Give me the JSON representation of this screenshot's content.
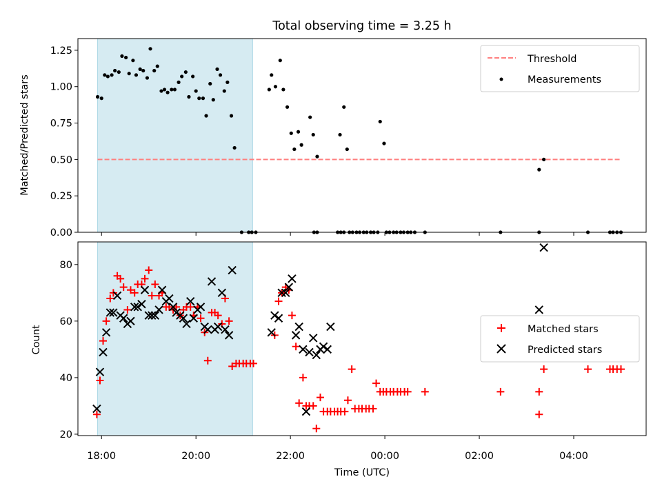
{
  "title": "Total observing time = 3.25 h",
  "x_ticks": [
    "18:00",
    "20:00",
    "22:00",
    "00:00",
    "02:00",
    "04:00"
  ],
  "colors": {
    "threshold": "#ff7f7f",
    "shade": "#add8e6",
    "matched": "#ff0000",
    "predicted": "#000000"
  },
  "chart_data": [
    {
      "type": "scatter",
      "xlabel": "",
      "ylabel": "Matched/Predicted stars",
      "ylim": [
        0.0,
        1.33
      ],
      "y_ticks": [
        "0.00",
        "0.25",
        "0.50",
        "0.75",
        "1.00",
        "1.25"
      ],
      "observing_window": [
        "17:55",
        "21:12"
      ],
      "legend": {
        "position": "upper right",
        "entries": [
          "Threshold",
          "Measurements"
        ]
      },
      "threshold": {
        "name": "Threshold",
        "value": 0.5,
        "x_range": [
          "17:55",
          "05:00"
        ]
      },
      "series": [
        {
          "name": "Measurements",
          "points": [
            [
              "17:55",
              0.93
            ],
            [
              "18:00",
              0.92
            ],
            [
              "18:04",
              1.08
            ],
            [
              "18:08",
              1.07
            ],
            [
              "18:13",
              1.08
            ],
            [
              "18:17",
              1.11
            ],
            [
              "18:22",
              1.1
            ],
            [
              "18:26",
              1.21
            ],
            [
              "18:31",
              1.2
            ],
            [
              "18:35",
              1.09
            ],
            [
              "18:40",
              1.18
            ],
            [
              "18:44",
              1.08
            ],
            [
              "18:49",
              1.12
            ],
            [
              "18:53",
              1.11
            ],
            [
              "18:58",
              1.06
            ],
            [
              "19:02",
              1.26
            ],
            [
              "19:07",
              1.11
            ],
            [
              "19:11",
              1.14
            ],
            [
              "19:16",
              0.97
            ],
            [
              "19:20",
              0.98
            ],
            [
              "19:24",
              0.96
            ],
            [
              "19:29",
              0.98
            ],
            [
              "19:33",
              0.98
            ],
            [
              "19:38",
              1.03
            ],
            [
              "19:42",
              1.07
            ],
            [
              "19:47",
              1.1
            ],
            [
              "19:51",
              0.93
            ],
            [
              "19:56",
              1.07
            ],
            [
              "20:00",
              0.97
            ],
            [
              "20:04",
              0.92
            ],
            [
              "20:09",
              0.92
            ],
            [
              "20:13",
              0.8
            ],
            [
              "20:18",
              1.02
            ],
            [
              "20:22",
              0.91
            ],
            [
              "20:27",
              1.12
            ],
            [
              "20:31",
              1.08
            ],
            [
              "20:36",
              0.97
            ],
            [
              "20:40",
              1.03
            ],
            [
              "20:45",
              0.8
            ],
            [
              "20:49",
              0.58
            ],
            [
              "20:58",
              0
            ],
            [
              "21:07",
              0
            ],
            [
              "21:11",
              0
            ],
            [
              "21:16",
              0
            ],
            [
              "21:33",
              0.98
            ],
            [
              "21:36",
              1.08
            ],
            [
              "21:41",
              1.0
            ],
            [
              "21:47",
              1.18
            ],
            [
              "21:51",
              0.98
            ],
            [
              "21:56",
              0.86
            ],
            [
              "22:01",
              0.68
            ],
            [
              "22:05",
              0.57
            ],
            [
              "22:10",
              0.69
            ],
            [
              "22:14",
              0.6
            ],
            [
              "22:25",
              0.79
            ],
            [
              "22:29",
              0.67
            ],
            [
              "22:34",
              0.52
            ],
            [
              "23:03",
              0.67
            ],
            [
              "23:08",
              0.86
            ],
            [
              "23:12",
              0.57
            ],
            [
              "23:54",
              0.76
            ],
            [
              "23:59",
              0.61
            ],
            [
              "22:30",
              0
            ],
            [
              "22:34",
              0
            ],
            [
              "23:00",
              0
            ],
            [
              "23:04",
              0
            ],
            [
              "23:08",
              0
            ],
            [
              "23:15",
              0
            ],
            [
              "23:19",
              0
            ],
            [
              "23:24",
              0
            ],
            [
              "23:28",
              0
            ],
            [
              "23:33",
              0
            ],
            [
              "23:37",
              0
            ],
            [
              "23:42",
              0
            ],
            [
              "23:46",
              0
            ],
            [
              "23:51",
              0
            ],
            [
              "00:02",
              0
            ],
            [
              "00:06",
              0
            ],
            [
              "00:11",
              0
            ],
            [
              "00:15",
              0
            ],
            [
              "00:20",
              0
            ],
            [
              "00:24",
              0
            ],
            [
              "00:29",
              0
            ],
            [
              "00:33",
              0
            ],
            [
              "00:38",
              0
            ],
            [
              "00:51",
              0
            ],
            [
              "02:27",
              0
            ],
            [
              "03:16",
              0
            ],
            [
              "04:18",
              0
            ],
            [
              "04:46",
              0
            ],
            [
              "04:50",
              0
            ],
            [
              "04:55",
              0
            ],
            [
              "05:00",
              0
            ],
            [
              "03:16",
              0.43
            ],
            [
              "03:22",
              0.5
            ]
          ]
        }
      ]
    },
    {
      "type": "scatter",
      "xlabel": "Time (UTC)",
      "ylabel": "Count",
      "ylim": [
        19.5,
        88
      ],
      "y_ticks": [
        "20",
        "40",
        "60",
        "80"
      ],
      "observing_window": [
        "17:55",
        "21:12"
      ],
      "legend": {
        "position": "center right",
        "entries": [
          "Matched stars",
          "Predicted stars"
        ]
      },
      "series": [
        {
          "name": "Matched stars",
          "marker": "+",
          "points": [
            [
              "17:54",
              27
            ],
            [
              "17:58",
              39
            ],
            [
              "18:02",
              53
            ],
            [
              "18:06",
              60
            ],
            [
              "18:11",
              68
            ],
            [
              "18:15",
              70
            ],
            [
              "18:20",
              76
            ],
            [
              "18:24",
              75
            ],
            [
              "18:28",
              72
            ],
            [
              "18:33",
              64
            ],
            [
              "18:37",
              71
            ],
            [
              "18:42",
              70
            ],
            [
              "18:46",
              73
            ],
            [
              "18:51",
              73
            ],
            [
              "18:55",
              75
            ],
            [
              "19:00",
              78
            ],
            [
              "19:04",
              69
            ],
            [
              "19:08",
              73
            ],
            [
              "19:13",
              69
            ],
            [
              "19:17",
              70
            ],
            [
              "19:22",
              65
            ],
            [
              "19:26",
              65
            ],
            [
              "19:31",
              64
            ],
            [
              "19:35",
              65
            ],
            [
              "19:40",
              62
            ],
            [
              "19:44",
              64
            ],
            [
              "19:48",
              65
            ],
            [
              "19:53",
              65
            ],
            [
              "19:57",
              62
            ],
            [
              "20:02",
              65
            ],
            [
              "20:06",
              61
            ],
            [
              "20:11",
              56
            ],
            [
              "20:15",
              46
            ],
            [
              "20:20",
              63
            ],
            [
              "20:24",
              63
            ],
            [
              "20:28",
              62
            ],
            [
              "20:33",
              59
            ],
            [
              "20:37",
              68
            ],
            [
              "20:42",
              60
            ],
            [
              "20:46",
              44
            ],
            [
              "20:51",
              45
            ],
            [
              "20:55",
              45
            ],
            [
              "21:00",
              45
            ],
            [
              "21:04",
              45
            ],
            [
              "21:09",
              45
            ],
            [
              "21:13",
              45
            ],
            [
              "21:40",
              55
            ],
            [
              "21:45",
              67
            ],
            [
              "21:49",
              70
            ],
            [
              "21:54",
              72
            ],
            [
              "21:58",
              71
            ],
            [
              "22:02",
              62
            ],
            [
              "22:07",
              51
            ],
            [
              "22:11",
              31
            ],
            [
              "22:16",
              40
            ],
            [
              "22:20",
              30
            ],
            [
              "22:24",
              30
            ],
            [
              "22:29",
              30
            ],
            [
              "22:33",
              22
            ],
            [
              "22:38",
              33
            ],
            [
              "22:42",
              28
            ],
            [
              "22:47",
              28
            ],
            [
              "22:51",
              28
            ],
            [
              "22:56",
              28
            ],
            [
              "23:00",
              28
            ],
            [
              "23:04",
              28
            ],
            [
              "23:09",
              28
            ],
            [
              "23:13",
              32
            ],
            [
              "23:18",
              43
            ],
            [
              "23:22",
              29
            ],
            [
              "23:27",
              29
            ],
            [
              "23:31",
              29
            ],
            [
              "23:36",
              29
            ],
            [
              "23:40",
              29
            ],
            [
              "23:45",
              29
            ],
            [
              "23:49",
              38
            ],
            [
              "23:54",
              35
            ],
            [
              "23:58",
              35
            ],
            [
              "00:02",
              35
            ],
            [
              "00:07",
              35
            ],
            [
              "00:11",
              35
            ],
            [
              "00:16",
              35
            ],
            [
              "00:20",
              35
            ],
            [
              "00:25",
              35
            ],
            [
              "00:29",
              35
            ],
            [
              "00:51",
              35
            ],
            [
              "02:27",
              35
            ],
            [
              "03:16",
              35
            ],
            [
              "03:16",
              27
            ],
            [
              "03:22",
              43
            ],
            [
              "04:18",
              43
            ],
            [
              "04:46",
              43
            ],
            [
              "04:50",
              43
            ],
            [
              "04:55",
              43
            ],
            [
              "05:00",
              43
            ]
          ]
        },
        {
          "name": "Predicted stars",
          "marker": "x",
          "points": [
            [
              "17:54",
              29
            ],
            [
              "17:58",
              42
            ],
            [
              "18:02",
              49
            ],
            [
              "18:06",
              56
            ],
            [
              "18:11",
              63
            ],
            [
              "18:15",
              63
            ],
            [
              "18:20",
              69
            ],
            [
              "18:24",
              62
            ],
            [
              "18:28",
              61
            ],
            [
              "18:33",
              59
            ],
            [
              "18:37",
              60
            ],
            [
              "18:42",
              65
            ],
            [
              "18:46",
              65
            ],
            [
              "18:51",
              66
            ],
            [
              "18:55",
              71
            ],
            [
              "19:00",
              62
            ],
            [
              "19:04",
              62
            ],
            [
              "19:08",
              62
            ],
            [
              "19:13",
              64
            ],
            [
              "19:17",
              71
            ],
            [
              "19:22",
              67
            ],
            [
              "19:26",
              68
            ],
            [
              "19:31",
              65
            ],
            [
              "19:35",
              63
            ],
            [
              "19:40",
              62
            ],
            [
              "19:44",
              61
            ],
            [
              "19:48",
              59
            ],
            [
              "19:53",
              67
            ],
            [
              "19:57",
              61
            ],
            [
              "20:02",
              64
            ],
            [
              "20:06",
              65
            ],
            [
              "20:11",
              58
            ],
            [
              "20:15",
              57
            ],
            [
              "20:20",
              74
            ],
            [
              "20:24",
              57
            ],
            [
              "20:28",
              58
            ],
            [
              "20:33",
              70
            ],
            [
              "20:37",
              57
            ],
            [
              "20:42",
              55
            ],
            [
              "20:46",
              78
            ],
            [
              "21:36",
              56
            ],
            [
              "21:40",
              62
            ],
            [
              "21:45",
              61
            ],
            [
              "21:49",
              70
            ],
            [
              "21:54",
              70
            ],
            [
              "21:58",
              72
            ],
            [
              "22:02",
              75
            ],
            [
              "22:07",
              55
            ],
            [
              "22:11",
              58
            ],
            [
              "22:16",
              50
            ],
            [
              "22:20",
              28
            ],
            [
              "22:24",
              49
            ],
            [
              "22:29",
              54
            ],
            [
              "22:33",
              48
            ],
            [
              "22:38",
              50
            ],
            [
              "22:42",
              51
            ],
            [
              "22:47",
              50
            ],
            [
              "22:51",
              58
            ],
            [
              "03:16",
              64
            ],
            [
              "03:22",
              86
            ]
          ]
        }
      ]
    }
  ]
}
